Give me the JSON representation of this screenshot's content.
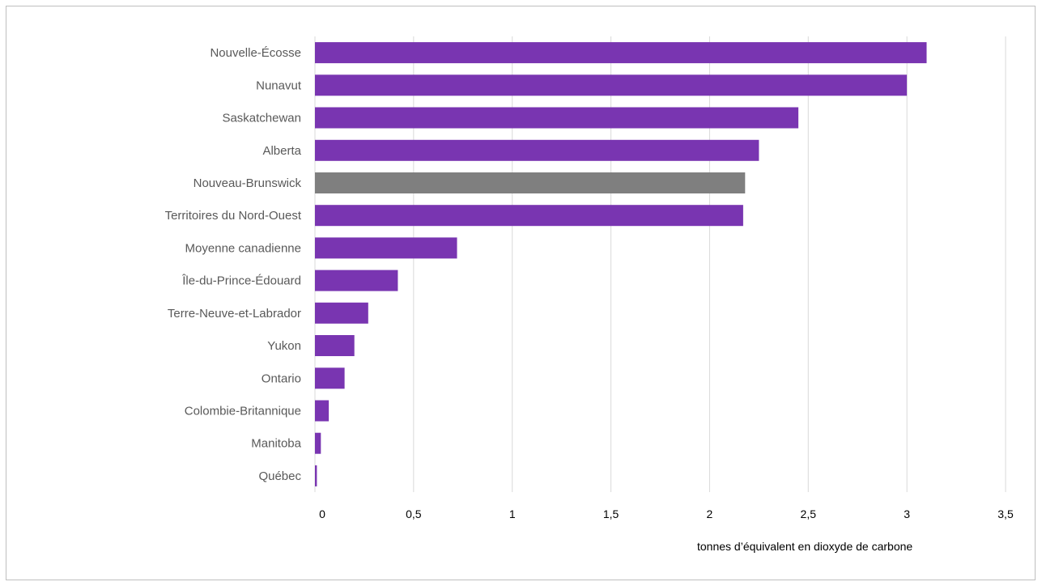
{
  "chart_data": {
    "type": "bar",
    "orientation": "horizontal",
    "categories": [
      "Nouvelle-Écosse",
      "Nunavut",
      "Saskatchewan",
      "Alberta",
      "Nouveau-Brunswick",
      "Territoires du Nord-Ouest",
      "Moyenne canadienne",
      "Île-du-Prince-Édouard",
      "Terre-Neuve-et-Labrador",
      "Yukon",
      "Ontario",
      "Colombie-Britannique",
      "Manitoba",
      "Québec"
    ],
    "values": [
      3.1,
      3.0,
      2.45,
      2.25,
      2.18,
      2.17,
      0.72,
      0.42,
      0.27,
      0.2,
      0.15,
      0.07,
      0.03,
      0.01
    ],
    "highlight": "Nouveau-Brunswick",
    "colors": {
      "bar": "#7935b1",
      "highlight": "#7f7f7f",
      "grid": "#d9d9d9"
    },
    "xlim": [
      0,
      3.5
    ],
    "xticks": [
      "0",
      "0,5",
      "1",
      "1,5",
      "2",
      "2,5",
      "3",
      "3,5"
    ],
    "xlabel": "tonnes d’équivalent en dioxyde de carbone",
    "grid": true
  }
}
